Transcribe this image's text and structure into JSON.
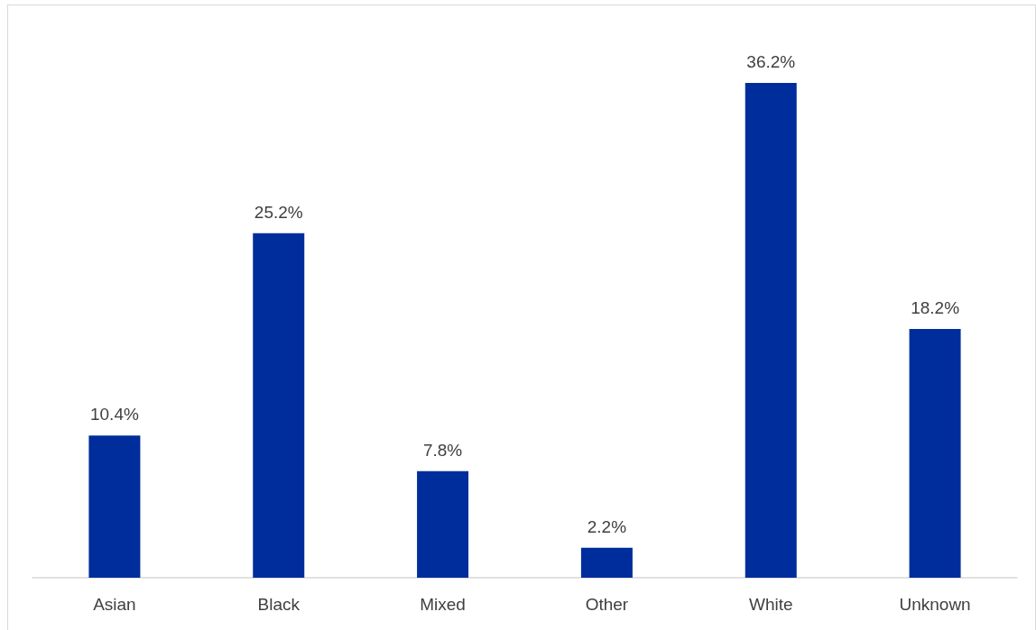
{
  "chart_data": {
    "type": "bar",
    "categories": [
      "Asian",
      "Black",
      "Mixed",
      "Other",
      "White",
      "Unknown"
    ],
    "values": [
      10.4,
      25.2,
      7.8,
      2.2,
      36.2,
      18.2
    ],
    "value_labels": [
      "10.4%",
      "25.2%",
      "7.8%",
      "2.2%",
      "36.2%",
      "18.2%"
    ],
    "color": "#002d9c"
  }
}
